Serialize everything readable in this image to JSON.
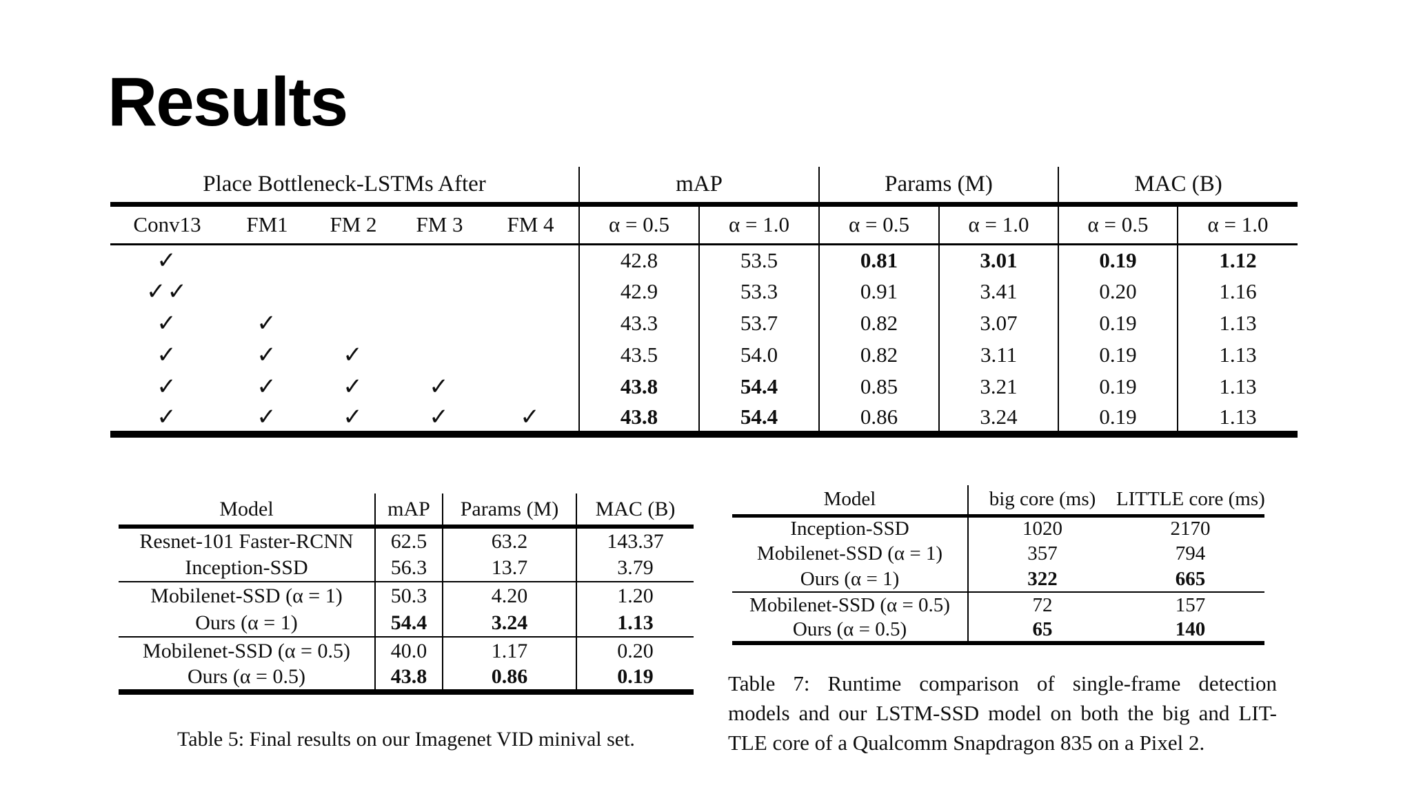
{
  "slide": {
    "title": "Results",
    "background_color": "#ffffff",
    "text_color": "#0e0e0e",
    "rule_color": "#000000"
  },
  "ablation_table": {
    "group_headers": [
      "Place Bottleneck-LSTMs After",
      "mAP",
      "Params (M)",
      "MAC (B)"
    ],
    "column_headers": [
      "Conv13",
      "FM1",
      "FM 2",
      "FM 3",
      "FM 4",
      "α = 0.5",
      "α = 1.0",
      "α = 0.5",
      "α = 1.0",
      "α = 0.5",
      "α = 1.0"
    ],
    "check_glyph": "✓",
    "rows": [
      {
        "checks": [
          "✓",
          "",
          "",
          "",
          ""
        ],
        "values": [
          "42.8",
          "53.5",
          "0.81",
          "3.01",
          "0.19",
          "1.12"
        ],
        "bold": [
          false,
          false,
          true,
          true,
          true,
          true
        ]
      },
      {
        "checks": [
          "✓✓",
          "",
          "",
          "",
          ""
        ],
        "values": [
          "42.9",
          "53.3",
          "0.91",
          "3.41",
          "0.20",
          "1.16"
        ],
        "bold": [
          false,
          false,
          false,
          false,
          false,
          false
        ]
      },
      {
        "checks": [
          "✓",
          "✓",
          "",
          "",
          ""
        ],
        "values": [
          "43.3",
          "53.7",
          "0.82",
          "3.07",
          "0.19",
          "1.13"
        ],
        "bold": [
          false,
          false,
          false,
          false,
          false,
          false
        ]
      },
      {
        "checks": [
          "✓",
          "✓",
          "✓",
          "",
          ""
        ],
        "values": [
          "43.5",
          "54.0",
          "0.82",
          "3.11",
          "0.19",
          "1.13"
        ],
        "bold": [
          false,
          false,
          false,
          false,
          false,
          false
        ]
      },
      {
        "checks": [
          "✓",
          "✓",
          "✓",
          "✓",
          ""
        ],
        "values": [
          "43.8",
          "54.4",
          "0.85",
          "3.21",
          "0.19",
          "1.13"
        ],
        "bold": [
          true,
          true,
          false,
          false,
          false,
          false
        ]
      },
      {
        "checks": [
          "✓",
          "✓",
          "✓",
          "✓",
          "✓"
        ],
        "values": [
          "43.8",
          "54.4",
          "0.86",
          "3.24",
          "0.19",
          "1.13"
        ],
        "bold": [
          true,
          true,
          false,
          false,
          false,
          false
        ]
      }
    ]
  },
  "final_results_table": {
    "headers": [
      "Model",
      "mAP",
      "Params (M)",
      "MAC (B)"
    ],
    "groups": [
      {
        "rows": [
          {
            "model": "Resnet-101 Faster-RCNN",
            "values": [
              "62.5",
              "63.2",
              "143.37"
            ],
            "bold": false
          },
          {
            "model": "Inception-SSD",
            "values": [
              "56.3",
              "13.7",
              "3.79"
            ],
            "bold": false
          }
        ]
      },
      {
        "rows": [
          {
            "model": "Mobilenet-SSD (α = 1)",
            "values": [
              "50.3",
              "4.20",
              "1.20"
            ],
            "bold": false
          },
          {
            "model": "Ours (α = 1)",
            "values": [
              "54.4",
              "3.24",
              "1.13"
            ],
            "bold": true
          }
        ]
      },
      {
        "rows": [
          {
            "model": "Mobilenet-SSD (α = 0.5)",
            "values": [
              "40.0",
              "1.17",
              "0.20"
            ],
            "bold": false
          },
          {
            "model": "Ours (α = 0.5)",
            "values": [
              "43.8",
              "0.86",
              "0.19"
            ],
            "bold": true
          }
        ]
      }
    ],
    "caption": "Table 5: Final results on our Imagenet VID minival set."
  },
  "runtime_table": {
    "headers": [
      "Model",
      "big core (ms)",
      "LITTLE core (ms)"
    ],
    "groups": [
      {
        "rows": [
          {
            "model": "Inception-SSD",
            "values": [
              "1020",
              "2170"
            ],
            "bold": false
          },
          {
            "model": "Mobilenet-SSD (α = 1)",
            "values": [
              "357",
              "794"
            ],
            "bold": false
          },
          {
            "model": "Ours (α = 1)",
            "values": [
              "322",
              "665"
            ],
            "bold": true
          }
        ]
      },
      {
        "rows": [
          {
            "model": "Mobilenet-SSD (α = 0.5)",
            "values": [
              "72",
              "157"
            ],
            "bold": false
          },
          {
            "model": "Ours (α = 0.5)",
            "values": [
              "65",
              "140"
            ],
            "bold": true
          }
        ]
      }
    ],
    "caption_lines": [
      "Table 7:  Runtime comparison of single-frame detection",
      "models and our LSTM-SSD model on both the big and LIT-",
      "TLE core of a Qualcomm Snapdragon 835 on a Pixel 2."
    ]
  }
}
